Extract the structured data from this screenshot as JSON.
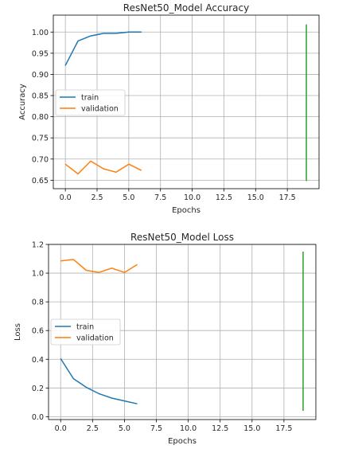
{
  "chart_data": [
    {
      "type": "line",
      "title": "ResNet50_Model Accuracy",
      "xlabel": "Epochs",
      "ylabel": "Accuracy",
      "xlim": [
        -0.95,
        20.0
      ],
      "ylim": [
        0.63,
        1.04
      ],
      "xticks": [
        0.0,
        2.5,
        5.0,
        7.5,
        10.0,
        12.5,
        15.0,
        17.5
      ],
      "xtick_labels": [
        "0.0",
        "2.5",
        "5.0",
        "7.5",
        "10.0",
        "12.5",
        "15.0",
        "17.5"
      ],
      "yticks": [
        0.65,
        0.7,
        0.75,
        0.8,
        0.85,
        0.9,
        0.95,
        1.0
      ],
      "ytick_labels": [
        "0.65",
        "0.70",
        "0.75",
        "0.80",
        "0.85",
        "0.90",
        "0.95",
        "1.00"
      ],
      "grid": true,
      "legend_position": "center-left",
      "series": [
        {
          "name": "train",
          "color": "#1f77b4",
          "x": [
            0,
            1,
            2,
            3,
            4,
            5,
            6
          ],
          "values": [
            0.921,
            0.979,
            0.991,
            0.997,
            0.997,
            1.0,
            1.0
          ]
        },
        {
          "name": "validation",
          "color": "#ff7f0e",
          "x": [
            0,
            1,
            2,
            3,
            4,
            5,
            6
          ],
          "values": [
            0.688,
            0.665,
            0.695,
            0.677,
            0.669,
            0.688,
            0.673
          ]
        }
      ],
      "vline": {
        "color": "#2ca02c",
        "x": 19,
        "y_range": [
          0.648,
          1.018
        ]
      }
    },
    {
      "type": "line",
      "title": "ResNet50_Model Loss",
      "xlabel": "Epochs",
      "ylabel": "Loss",
      "xlim": [
        -0.95,
        20.0
      ],
      "ylim": [
        -0.02,
        1.2
      ],
      "xticks": [
        0.0,
        2.5,
        5.0,
        7.5,
        10.0,
        12.5,
        15.0,
        17.5
      ],
      "xtick_labels": [
        "0.0",
        "2.5",
        "5.0",
        "7.5",
        "10.0",
        "12.5",
        "15.0",
        "17.5"
      ],
      "yticks": [
        0.0,
        0.2,
        0.4,
        0.6,
        0.8,
        1.0,
        1.2
      ],
      "ytick_labels": [
        "0.0",
        "0.2",
        "0.4",
        "0.6",
        "0.8",
        "1.0",
        "1.2"
      ],
      "grid": true,
      "legend_position": "center-left",
      "series": [
        {
          "name": "train",
          "color": "#1f77b4",
          "x": [
            0,
            1,
            2,
            3,
            4,
            5,
            6
          ],
          "values": [
            0.405,
            0.265,
            0.205,
            0.16,
            0.13,
            0.11,
            0.09
          ]
        },
        {
          "name": "validation",
          "color": "#ff7f0e",
          "x": [
            0,
            1,
            2,
            3,
            4,
            5,
            6
          ],
          "values": [
            1.085,
            1.095,
            1.02,
            1.005,
            1.035,
            1.005,
            1.06
          ]
        }
      ],
      "vline": {
        "color": "#2ca02c",
        "x": 19,
        "y_range": [
          0.04,
          1.15
        ]
      }
    }
  ]
}
